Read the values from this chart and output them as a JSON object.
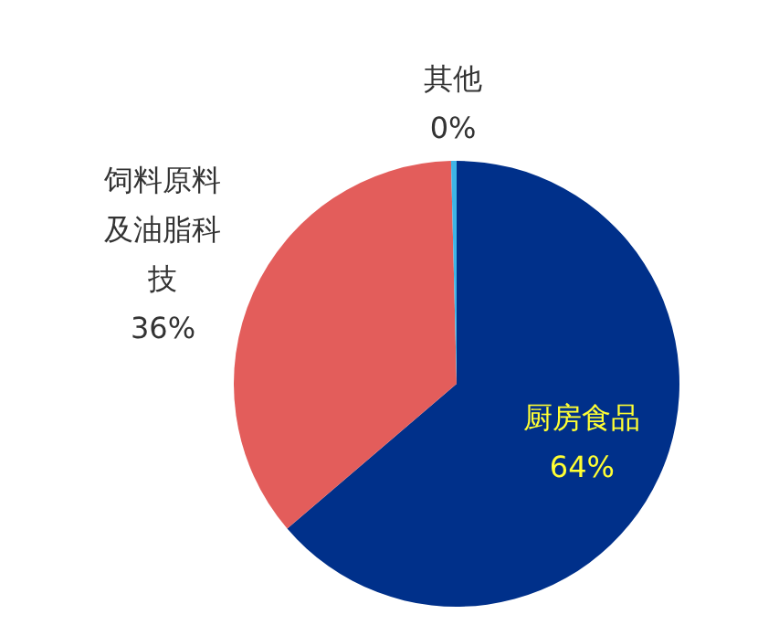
{
  "chart_data": {
    "type": "pie",
    "categories": [
      "厨房食品",
      "饲料原料及油脂科技",
      "其他"
    ],
    "values": [
      64,
      36,
      0.4
    ],
    "value_labels": [
      "64%",
      "36%",
      "0%"
    ],
    "colors": [
      "#00308a",
      "#e35d5b",
      "#3db5e6"
    ]
  }
}
